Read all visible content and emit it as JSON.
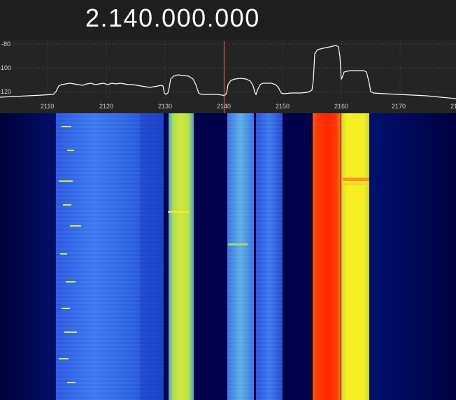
{
  "header": {
    "frequency": "2.140.000.000"
  },
  "spectrum": {
    "db_labels": [
      "-80",
      "-100",
      "-120"
    ],
    "freq_labels": [
      "2110",
      "2120",
      "2130",
      "2140",
      "2150",
      "2160",
      "2170",
      "21"
    ],
    "colors": {
      "trace": "#ffffff",
      "grid": "#5a5a5a",
      "tuning_marker": "#e05050",
      "background": "#242424"
    }
  },
  "waterfall": {
    "colors": {
      "background": "#00003c",
      "low": "#1a44d8",
      "mid": "#c8e040",
      "high": "#ff3000"
    }
  }
}
